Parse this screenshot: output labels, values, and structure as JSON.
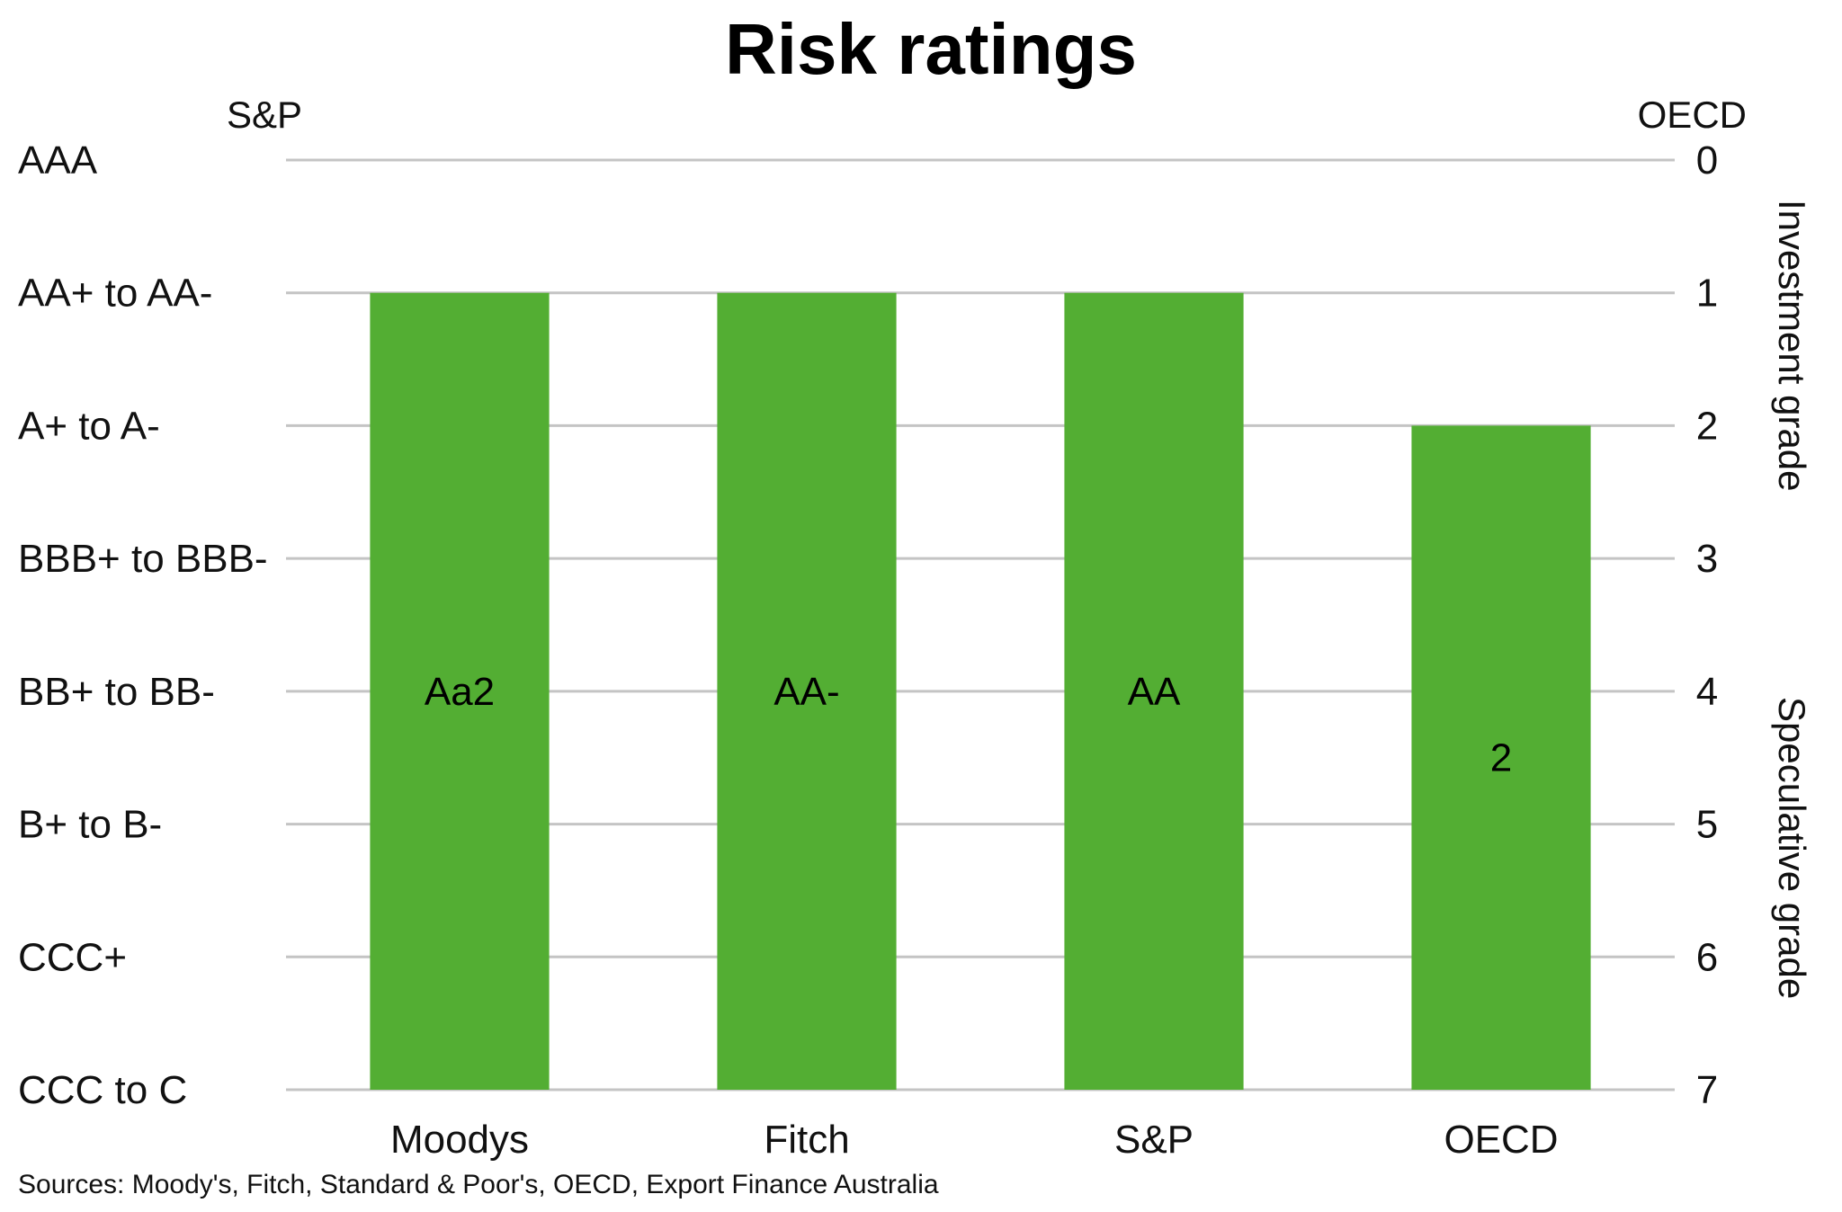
{
  "chart_data": {
    "type": "bar",
    "title": "Risk ratings",
    "left_axis_title": "S&P",
    "right_axis_title": "OECD",
    "left_tick_labels": [
      "AAA",
      "AA+ to AA-",
      "A+ to A-",
      "BBB+ to BBB-",
      "BB+ to BB-",
      "B+ to B-",
      "CCC+",
      "CCC to C"
    ],
    "right_tick_labels": [
      "0",
      "1",
      "2",
      "3",
      "4",
      "5",
      "6",
      "7"
    ],
    "categories": [
      "Moodys",
      "Fitch",
      "S&P",
      "OECD"
    ],
    "values": [
      1,
      1,
      1,
      2
    ],
    "data_labels": [
      "Aa2",
      "AA-",
      "AA",
      "2"
    ],
    "ylim": [
      0,
      7
    ],
    "y_inverted": true,
    "grid": true,
    "bar_color": "#53ae33",
    "right_bands": [
      "Investment grade",
      "Speculative grade"
    ],
    "source": "Sources: Moody's, Fitch, Standard & Poor's, OECD, Export Finance Australia"
  }
}
